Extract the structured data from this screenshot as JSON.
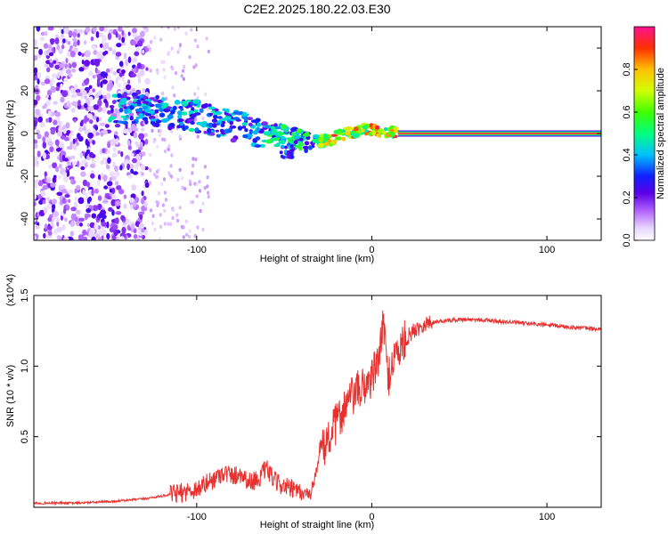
{
  "title": "C2E2.2025.180.22.03.E30",
  "chart_data": [
    {
      "type": "heatmap",
      "xlabel": "Height of straight line (km)",
      "ylabel": "Frequency (Hz)",
      "xlim": [
        -193,
        131
      ],
      "ylim": [
        -50,
        50
      ],
      "xticks": [
        -100,
        0,
        100
      ],
      "yticks": [
        -40,
        -20,
        0,
        20,
        40
      ],
      "colorbar": {
        "label": "Normalized spectral amplitude",
        "range": [
          0,
          1
        ],
        "ticks": [
          "0.0",
          "0.2",
          "0.4",
          "0.6",
          "0.8"
        ]
      },
      "features": {
        "horizontal_band": {
          "frequency": 0,
          "x_start": 15,
          "x_end": 131,
          "amplitude": 1.0
        },
        "scatter_region": {
          "x_start": -193,
          "x_end": -128
        },
        "descending_trend": [
          [
            -145,
            12
          ],
          [
            -120,
            10
          ],
          [
            -100,
            8
          ],
          [
            -80,
            4
          ],
          [
            -60,
            0
          ],
          [
            -45,
            -2
          ],
          [
            -35,
            -4
          ],
          [
            -25,
            -3
          ],
          [
            -15,
            0
          ],
          [
            0,
            2
          ],
          [
            15,
            0
          ]
        ]
      }
    },
    {
      "type": "line",
      "xlabel": "Height of straight line (km)",
      "ylabel": "SNR (10 * v/v)",
      "y_multiplier": "(x10^4)",
      "xlim": [
        -193,
        131
      ],
      "ylim": [
        0,
        1.5
      ],
      "xticks": [
        -100,
        0,
        100
      ],
      "yticks": [
        "0.5",
        "1.0",
        "1.5"
      ],
      "series": [
        {
          "color": "#e8302e",
          "x": [
            -193,
            -170,
            -150,
            -140,
            -130,
            -120,
            -110,
            -100,
            -90,
            -85,
            -80,
            -75,
            -70,
            -65,
            -60,
            -55,
            -50,
            -45,
            -40,
            -35,
            -30,
            -25,
            -20,
            -15,
            -10,
            -5,
            0,
            3,
            5,
            7,
            9,
            12,
            15,
            20,
            25,
            30,
            35,
            40,
            50,
            60,
            70,
            80,
            90,
            100,
            110,
            120,
            131
          ],
          "y": [
            0.03,
            0.03,
            0.04,
            0.05,
            0.06,
            0.08,
            0.1,
            0.13,
            0.2,
            0.25,
            0.22,
            0.24,
            0.18,
            0.2,
            0.27,
            0.18,
            0.15,
            0.12,
            0.1,
            0.09,
            0.35,
            0.48,
            0.6,
            0.72,
            0.8,
            0.85,
            0.92,
            1.0,
            1.15,
            1.3,
            0.9,
            1.05,
            1.1,
            1.2,
            1.26,
            1.3,
            1.31,
            1.32,
            1.33,
            1.33,
            1.32,
            1.31,
            1.3,
            1.29,
            1.28,
            1.27,
            1.26
          ]
        }
      ]
    }
  ]
}
